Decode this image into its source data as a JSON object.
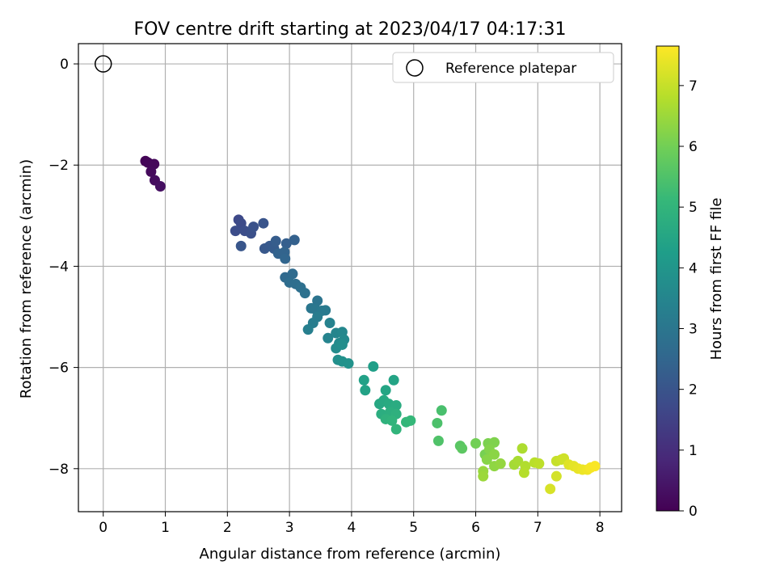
{
  "chart_data": {
    "type": "scatter",
    "title": "FOV centre drift starting at 2023/04/17 04:17:31",
    "xlabel": "Angular distance from reference (arcmin)",
    "ylabel": "Rotation from reference (arcmin)",
    "xlim": [
      -0.4,
      8.35
    ],
    "ylim": [
      -8.85,
      0.4
    ],
    "xticks": [
      0,
      1,
      2,
      3,
      4,
      5,
      6,
      7,
      8
    ],
    "yticks": [
      0,
      -2,
      -4,
      -6,
      -8
    ],
    "grid": true,
    "legend": {
      "label": "Reference platepar",
      "position": "top-right"
    },
    "reference_point": {
      "x": 0,
      "y": 0
    },
    "colorbar": {
      "label": "Hours from first FF file",
      "range": [
        0,
        7.65
      ],
      "ticks": [
        0,
        1,
        2,
        3,
        4,
        5,
        6,
        7
      ],
      "colormap": "viridis"
    },
    "points": [
      [
        0.68,
        -1.92,
        0.05
      ],
      [
        0.72,
        -1.95,
        0.1
      ],
      [
        0.82,
        -1.98,
        0.15
      ],
      [
        0.77,
        -2.13,
        0.2
      ],
      [
        0.83,
        -2.3,
        0.25
      ],
      [
        0.92,
        -2.42,
        0.3
      ],
      [
        2.18,
        -3.08,
        1.7
      ],
      [
        2.22,
        -3.15,
        1.75
      ],
      [
        2.13,
        -3.3,
        1.8
      ],
      [
        2.28,
        -3.3,
        1.85
      ],
      [
        2.38,
        -3.35,
        1.9
      ],
      [
        2.42,
        -3.22,
        1.95
      ],
      [
        2.58,
        -3.15,
        2.0
      ],
      [
        2.22,
        -3.6,
        2.05
      ],
      [
        2.6,
        -3.65,
        2.1
      ],
      [
        2.68,
        -3.6,
        2.15
      ],
      [
        2.75,
        -3.65,
        2.2
      ],
      [
        2.78,
        -3.5,
        2.25
      ],
      [
        2.95,
        -3.55,
        2.3
      ],
      [
        3.08,
        -3.48,
        2.35
      ],
      [
        2.82,
        -3.75,
        2.4
      ],
      [
        2.92,
        -3.72,
        2.45
      ],
      [
        2.93,
        -3.85,
        2.5
      ],
      [
        2.93,
        -4.22,
        2.6
      ],
      [
        3.05,
        -4.15,
        2.65
      ],
      [
        3.0,
        -4.32,
        2.7
      ],
      [
        3.1,
        -4.35,
        2.75
      ],
      [
        3.18,
        -4.42,
        2.8
      ],
      [
        3.25,
        -4.53,
        2.85
      ],
      [
        3.45,
        -4.68,
        2.95
      ],
      [
        3.35,
        -4.83,
        3.0
      ],
      [
        3.42,
        -4.85,
        3.05
      ],
      [
        3.52,
        -4.88,
        3.1
      ],
      [
        3.58,
        -4.87,
        3.15
      ],
      [
        3.45,
        -5.0,
        3.2
      ],
      [
        3.38,
        -5.12,
        3.25
      ],
      [
        3.3,
        -5.25,
        3.3
      ],
      [
        3.65,
        -5.12,
        3.4
      ],
      [
        3.62,
        -5.42,
        3.45
      ],
      [
        3.75,
        -5.32,
        3.5
      ],
      [
        3.85,
        -5.3,
        3.55
      ],
      [
        3.88,
        -5.45,
        3.6
      ],
      [
        3.8,
        -5.52,
        3.65
      ],
      [
        3.75,
        -5.62,
        3.7
      ],
      [
        3.85,
        -5.55,
        3.75
      ],
      [
        3.78,
        -5.85,
        3.8
      ],
      [
        3.85,
        -5.88,
        3.85
      ],
      [
        3.95,
        -5.92,
        3.9
      ],
      [
        4.35,
        -5.98,
        4.3
      ],
      [
        4.2,
        -6.25,
        4.35
      ],
      [
        4.22,
        -6.45,
        4.4
      ],
      [
        4.68,
        -6.25,
        4.45
      ],
      [
        4.55,
        -6.45,
        4.5
      ],
      [
        4.45,
        -6.72,
        4.55
      ],
      [
        4.52,
        -6.65,
        4.6
      ],
      [
        4.6,
        -6.72,
        4.65
      ],
      [
        4.72,
        -6.75,
        4.7
      ],
      [
        4.48,
        -6.92,
        4.75
      ],
      [
        4.62,
        -6.88,
        4.8
      ],
      [
        4.72,
        -6.92,
        4.85
      ],
      [
        4.55,
        -7.02,
        4.9
      ],
      [
        4.65,
        -7.05,
        4.95
      ],
      [
        4.72,
        -7.22,
        5.0
      ],
      [
        4.88,
        -7.08,
        5.05
      ],
      [
        4.95,
        -7.05,
        5.1
      ],
      [
        5.45,
        -6.85,
        5.4
      ],
      [
        5.38,
        -7.1,
        5.45
      ],
      [
        5.4,
        -7.45,
        5.5
      ],
      [
        5.75,
        -7.55,
        5.65
      ],
      [
        5.78,
        -7.6,
        5.7
      ],
      [
        6.0,
        -7.5,
        6.0
      ],
      [
        6.15,
        -7.72,
        6.05
      ],
      [
        6.2,
        -7.5,
        6.1
      ],
      [
        6.3,
        -7.48,
        6.15
      ],
      [
        6.22,
        -7.62,
        6.2
      ],
      [
        6.18,
        -7.82,
        6.25
      ],
      [
        6.3,
        -7.72,
        6.3
      ],
      [
        6.3,
        -7.95,
        6.35
      ],
      [
        6.4,
        -7.9,
        6.4
      ],
      [
        6.12,
        -8.05,
        6.45
      ],
      [
        6.12,
        -8.15,
        6.5
      ],
      [
        6.62,
        -7.92,
        6.6
      ],
      [
        6.68,
        -7.85,
        6.65
      ],
      [
        6.75,
        -7.6,
        6.7
      ],
      [
        6.8,
        -7.95,
        6.75
      ],
      [
        6.78,
        -8.08,
        6.8
      ],
      [
        6.95,
        -7.88,
        6.85
      ],
      [
        7.02,
        -7.9,
        6.9
      ],
      [
        7.3,
        -7.85,
        7.0
      ],
      [
        7.38,
        -7.82,
        7.05
      ],
      [
        7.42,
        -7.8,
        7.1
      ],
      [
        7.3,
        -8.15,
        7.15
      ],
      [
        7.2,
        -8.4,
        7.2
      ],
      [
        7.5,
        -7.92,
        7.3
      ],
      [
        7.58,
        -7.95,
        7.35
      ],
      [
        7.65,
        -8.0,
        7.4
      ],
      [
        7.72,
        -8.02,
        7.45
      ],
      [
        7.8,
        -8.02,
        7.5
      ],
      [
        7.85,
        -7.98,
        7.55
      ],
      [
        7.92,
        -7.95,
        7.6
      ]
    ]
  }
}
